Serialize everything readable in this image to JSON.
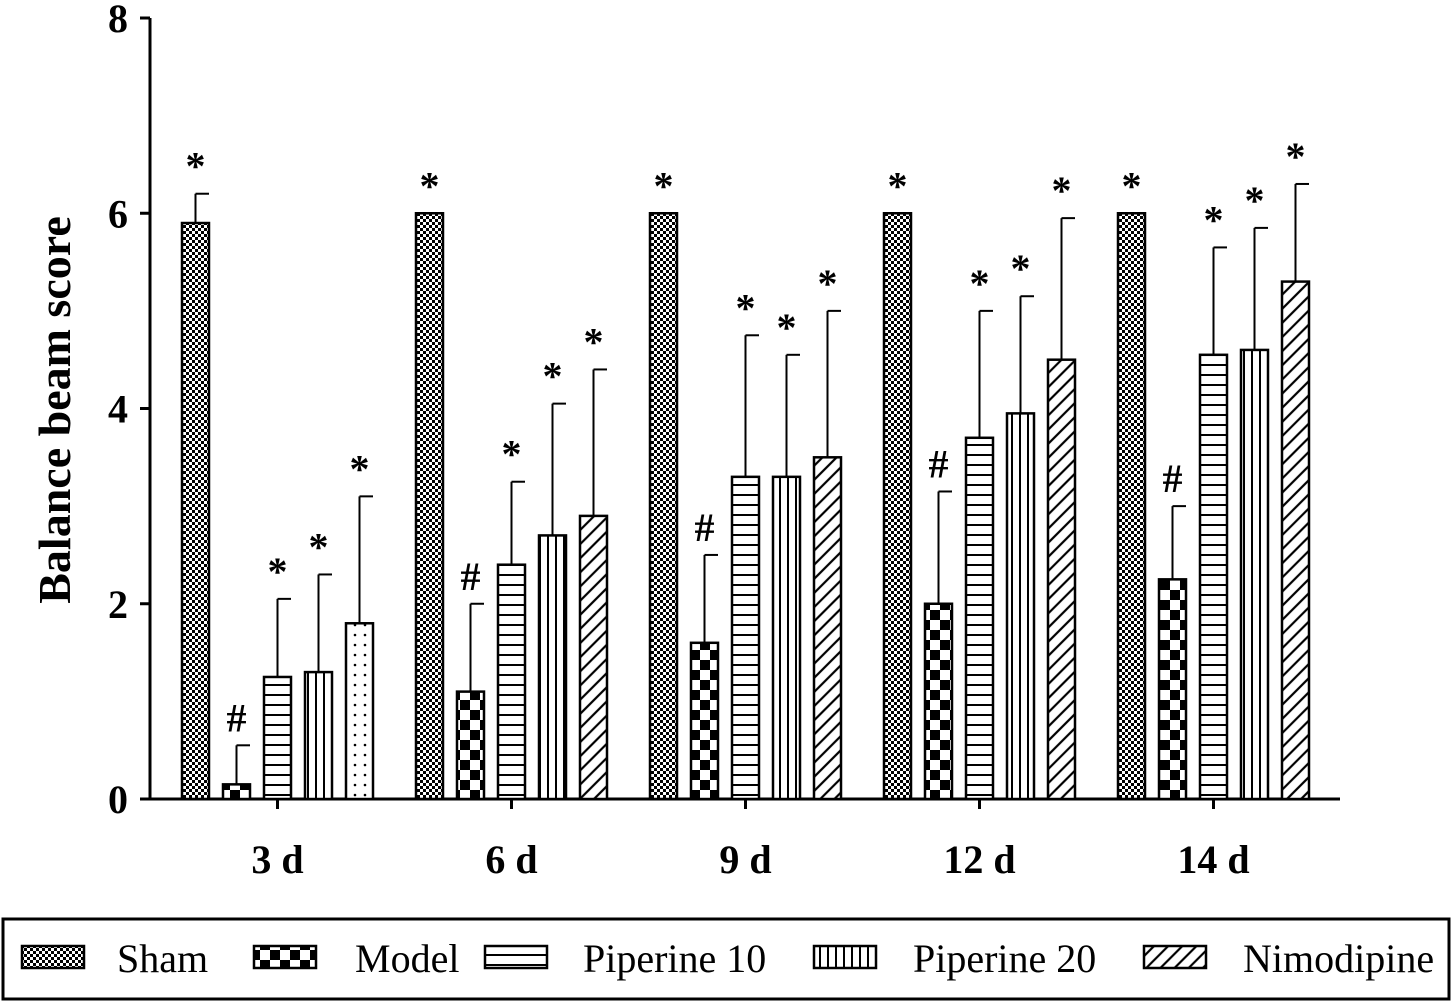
{
  "chart_data": {
    "type": "bar",
    "ylabel": "Balance beam score",
    "xlabel": "",
    "ylim": [
      0,
      8
    ],
    "yticks": [
      "0",
      "2",
      "4",
      "6",
      "8"
    ],
    "categories": [
      "3 d",
      "6 d",
      "9 d",
      "12 d",
      "14 d"
    ],
    "series": [
      {
        "name": "Sham",
        "pattern": "fine-checker",
        "values": [
          5.9,
          6.0,
          6.0,
          6.0,
          6.0
        ],
        "errors": [
          0.3,
          0,
          0,
          0,
          0
        ],
        "marks": [
          "*",
          "*",
          "*",
          "*",
          "*"
        ]
      },
      {
        "name": "Model",
        "pattern": "coarse-checker",
        "values": [
          0.15,
          1.1,
          1.6,
          2.0,
          2.25
        ],
        "errors": [
          0.4,
          0.9,
          0.9,
          1.15,
          0.75
        ],
        "marks": [
          "#",
          "#",
          "#",
          "#",
          "#"
        ]
      },
      {
        "name": "Piperine 10",
        "pattern": "horizontal-lines",
        "values": [
          1.25,
          2.4,
          3.3,
          3.7,
          4.55
        ],
        "errors": [
          0.8,
          0.85,
          1.45,
          1.3,
          1.1
        ],
        "marks": [
          "*",
          "*",
          "*",
          "*",
          "*"
        ]
      },
      {
        "name": "Piperine 20",
        "pattern": "vertical-lines",
        "values": [
          1.3,
          2.7,
          3.3,
          3.95,
          4.6
        ],
        "errors": [
          1.0,
          1.35,
          1.25,
          1.2,
          1.25
        ],
        "marks": [
          "*",
          "*",
          "*",
          "*",
          "*"
        ]
      },
      {
        "name": "Nimodipine",
        "pattern": "diagonal-lines",
        "values": [
          1.8,
          2.9,
          3.5,
          4.5,
          5.3
        ],
        "errors": [
          1.3,
          1.5,
          1.5,
          1.45,
          1.0
        ],
        "marks": [
          "*",
          "*",
          "*",
          "*",
          "*"
        ]
      }
    ],
    "legend_position": "bottom",
    "grid": false
  }
}
